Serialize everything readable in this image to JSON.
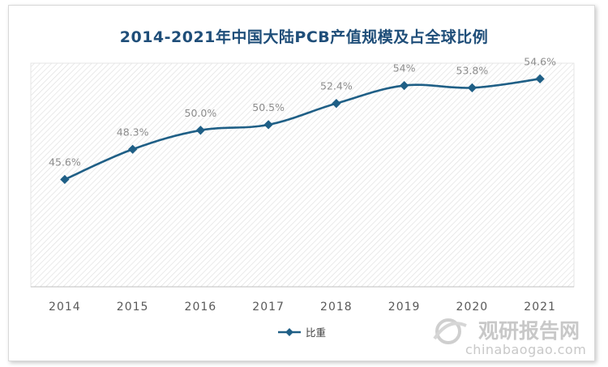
{
  "chart_data": {
    "type": "line",
    "title": "2014-2021年中国大陆PCB产值规模及占全球比例",
    "categories": [
      "2014",
      "2015",
      "2016",
      "2017",
      "2018",
      "2019",
      "2020",
      "2021"
    ],
    "series": [
      {
        "name": "比重",
        "values": [
          45.6,
          48.3,
          50.0,
          50.5,
          52.4,
          54.0,
          53.8,
          54.6
        ],
        "labels": [
          "45.6%",
          "48.3%",
          "50.0%",
          "50.5%",
          "52.4%",
          "54%",
          "53.8%",
          "54.6%"
        ],
        "color": "#1f5f86"
      }
    ],
    "ylim": [
      36,
      56
    ],
    "grid": false,
    "plot_background": "hatched",
    "legend": "bottom"
  },
  "watermark": {
    "name": "观研报告网",
    "url": "chinabaogao.com"
  }
}
